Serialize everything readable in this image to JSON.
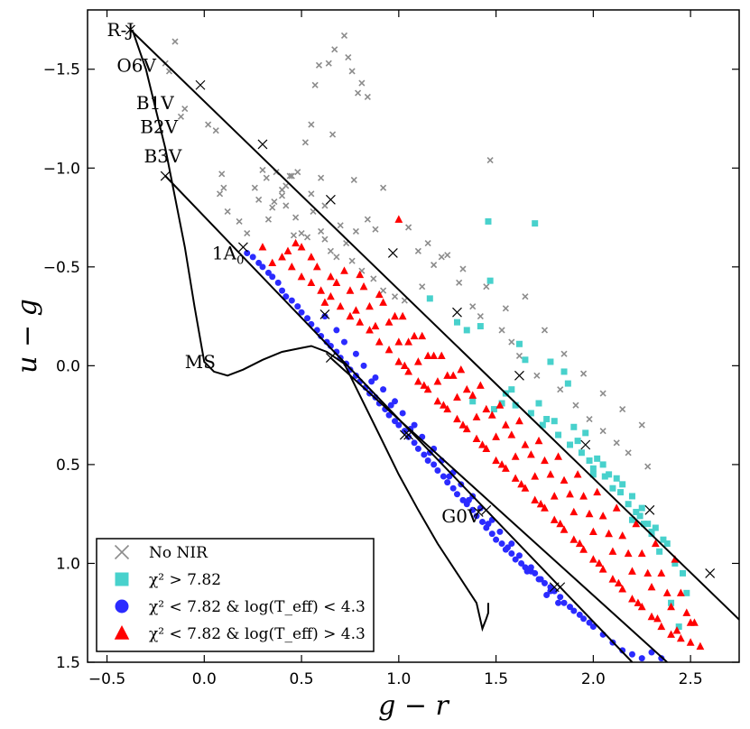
{
  "chart_data": {
    "type": "scatter",
    "xlabel": "g − r",
    "ylabel": "u − g",
    "xlim": [
      -0.6,
      2.75
    ],
    "ylim": [
      1.5,
      -1.8
    ],
    "x_ticks": [
      -0.5,
      0.0,
      0.5,
      1.0,
      1.5,
      2.0,
      2.5
    ],
    "x_tick_labels": [
      "−0.5",
      "0.0",
      "0.5",
      "1.0",
      "1.5",
      "2.0",
      "2.5"
    ],
    "y_ticks": [
      -1.5,
      -1.0,
      -0.5,
      0.0,
      0.5,
      1.0,
      1.5
    ],
    "y_tick_labels": [
      "−1.5",
      "−1.0",
      "−0.5",
      "0.0",
      "0.5",
      "1.0",
      "1.5"
    ],
    "colors": {
      "no_nir": "#8c8c8c",
      "chi_high": "#48d1cc",
      "low_teff": "#2b2bff",
      "high_teff": "#ff0000",
      "axes": "#000000"
    },
    "lines": [
      {
        "name": "MS",
        "x": [
          -0.37,
          -0.3,
          -0.25,
          -0.2,
          -0.15,
          -0.1,
          -0.05,
          0.0,
          0.05,
          0.12,
          0.2,
          0.3,
          0.4,
          0.5,
          0.55,
          0.63,
          0.72,
          0.8,
          0.9,
          1.0,
          1.1,
          1.2,
          1.3,
          1.4,
          1.43,
          1.45,
          1.46,
          1.46
        ],
        "y": [
          -1.7,
          -1.5,
          -1.3,
          -1.1,
          -0.85,
          -0.6,
          -0.3,
          -0.02,
          0.03,
          0.05,
          0.02,
          -0.03,
          -0.07,
          -0.09,
          -0.1,
          -0.07,
          -0.01,
          0.15,
          0.35,
          0.55,
          0.73,
          0.9,
          1.05,
          1.2,
          1.33,
          1.28,
          1.25,
          1.2
        ]
      },
      {
        "name": "Reddening line from R-J",
        "x": [
          -0.38,
          2.85
        ],
        "y": [
          -1.7,
          1.38
        ]
      },
      {
        "name": "Reddening line from B3V",
        "x": [
          -0.2,
          2.2
        ],
        "y": [
          -0.96,
          1.5
        ]
      },
      {
        "name": "Reddening line from G0V region",
        "x": [
          0.65,
          2.38
        ],
        "y": [
          -0.04,
          1.5
        ]
      }
    ],
    "tick_marks": {
      "line1": [
        [
          -0.38,
          -1.7
        ],
        [
          -0.02,
          -1.42
        ],
        [
          0.3,
          -1.12
        ],
        [
          0.65,
          -0.84
        ],
        [
          0.97,
          -0.57
        ],
        [
          1.3,
          -0.27
        ],
        [
          1.62,
          0.05
        ],
        [
          1.96,
          0.4
        ],
        [
          2.29,
          0.73
        ],
        [
          2.6,
          1.05
        ]
      ],
      "line2": [
        [
          -0.2,
          -0.96
        ],
        [
          0.2,
          -0.6
        ],
        [
          0.62,
          -0.26
        ],
        [
          1.05,
          0.35
        ],
        [
          1.45,
          0.73
        ],
        [
          1.83,
          1.12
        ]
      ],
      "line3": [
        [
          0.65,
          -0.04
        ],
        [
          1.03,
          0.35
        ],
        [
          1.41,
          0.74
        ],
        [
          1.8,
          1.12
        ]
      ]
    },
    "annotations": [
      {
        "text": "R-J",
        "x": -0.5,
        "y": -1.7
      },
      {
        "text": "O6V",
        "x": -0.45,
        "y": -1.52
      },
      {
        "text": "B1V",
        "x": -0.35,
        "y": -1.33
      },
      {
        "text": "B2V",
        "x": -0.33,
        "y": -1.21
      },
      {
        "text": "B3V",
        "x": -0.31,
        "y": -1.06
      },
      {
        "text": "1A",
        "sub": "0",
        "x": 0.04,
        "y": -0.57
      },
      {
        "text": "MS",
        "x": -0.1,
        "y": -0.02
      },
      {
        "text": "G0V",
        "x": 1.22,
        "y": 0.76
      }
    ],
    "legend": {
      "position": "bottom-left",
      "entries": [
        {
          "key": "no_nir",
          "label": "No NIR"
        },
        {
          "key": "chi_high",
          "label": "χ² > 7.82"
        },
        {
          "key": "low_teff",
          "label": "χ² < 7.82 & log(T_eff) < 4.3"
        },
        {
          "key": "high_teff",
          "label": "χ² < 7.82 & log(T_eff) > 4.3"
        }
      ]
    },
    "series": [
      {
        "name": "No NIR",
        "key": "no_nir",
        "marker": "x",
        "x": [
          -0.2,
          -0.15,
          -0.18,
          -0.12,
          -0.1,
          0.02,
          0.06,
          0.09,
          0.1,
          0.08,
          0.12,
          0.18,
          0.22,
          0.28,
          0.32,
          0.37,
          0.42,
          0.47,
          0.5,
          0.56,
          0.6,
          0.62,
          0.7,
          0.76,
          0.81,
          0.87,
          0.92,
          0.98,
          1.03,
          1.1,
          1.12,
          1.18,
          1.22,
          1.31,
          1.38,
          1.42,
          1.53,
          1.58,
          1.62,
          1.71,
          1.83,
          1.91,
          1.98,
          2.05,
          2.12,
          2.18,
          2.28,
          0.35,
          0.4,
          0.45,
          0.52,
          0.55,
          0.57,
          0.59,
          0.64,
          0.67,
          0.72,
          0.74,
          0.76,
          0.79,
          0.81,
          0.84,
          0.66,
          0.77,
          0.6,
          0.55,
          0.46,
          1.47,
          0.92,
          1.33,
          0.73,
          0.62,
          0.65,
          0.68,
          0.78,
          0.84,
          0.88,
          1.05,
          1.15,
          1.25,
          1.45,
          1.55,
          1.65,
          1.75,
          1.85,
          1.95,
          2.05,
          2.15,
          2.25,
          0.26,
          0.3,
          0.33,
          0.36,
          0.4,
          0.42,
          0.44,
          0.48,
          0.53
        ],
        "y": [
          -1.53,
          -1.64,
          -1.49,
          -1.26,
          -1.3,
          -1.22,
          -1.19,
          -0.97,
          -0.9,
          -0.87,
          -0.78,
          -0.73,
          -0.67,
          -0.84,
          -0.95,
          -0.98,
          -0.81,
          -0.75,
          -0.67,
          -0.78,
          -0.68,
          -0.81,
          -0.71,
          -0.53,
          -0.48,
          -0.44,
          -0.38,
          -0.35,
          -0.33,
          -0.58,
          -0.4,
          -0.51,
          -0.55,
          -0.42,
          -0.3,
          -0.25,
          -0.18,
          -0.12,
          -0.05,
          0.05,
          0.12,
          0.2,
          0.27,
          0.33,
          0.39,
          0.44,
          0.51,
          -0.8,
          -0.89,
          -0.96,
          -1.13,
          -1.22,
          -1.42,
          -1.52,
          -1.53,
          -1.6,
          -1.67,
          -1.56,
          -1.49,
          -1.38,
          -1.43,
          -1.36,
          -1.17,
          -0.94,
          -0.95,
          -0.87,
          -0.66,
          -1.04,
          -0.9,
          -0.49,
          -0.62,
          -0.64,
          -0.58,
          -0.55,
          -0.68,
          -0.74,
          -0.69,
          -0.7,
          -0.62,
          -0.56,
          -0.4,
          -0.29,
          -0.35,
          -0.18,
          -0.06,
          0.04,
          0.14,
          0.22,
          0.3,
          -0.9,
          -0.99,
          -0.74,
          -0.83,
          -0.86,
          -0.91,
          -0.96,
          -0.98,
          -0.65
        ]
      },
      {
        "name": "χ² > 7.82",
        "key": "chi_high",
        "marker": "s",
        "x": [
          1.46,
          1.7,
          1.47,
          1.62,
          1.78,
          1.85,
          1.87,
          1.65,
          1.58,
          1.49,
          1.53,
          1.38,
          1.42,
          1.72,
          1.76,
          1.8,
          1.9,
          1.92,
          1.96,
          2.02,
          2.05,
          2.08,
          2.12,
          2.15,
          2.2,
          2.25,
          2.28,
          2.32,
          2.36,
          2.42,
          2.46,
          1.82,
          1.94,
          2.0,
          2.1,
          2.18,
          2.24,
          2.3,
          2.38,
          2.48,
          1.68,
          1.74,
          1.88,
          1.98,
          2.06,
          2.14,
          2.22,
          2.34,
          1.55,
          1.6,
          2.0,
          2.2,
          2.4,
          2.44,
          1.16,
          1.3,
          1.35,
          2.26,
          2.3
        ],
        "y": [
          -0.73,
          -0.72,
          -0.43,
          -0.11,
          -0.02,
          0.03,
          0.09,
          -0.03,
          0.12,
          0.22,
          0.19,
          0.18,
          -0.2,
          0.19,
          0.27,
          0.28,
          0.31,
          0.38,
          0.34,
          0.47,
          0.5,
          0.55,
          0.57,
          0.6,
          0.66,
          0.72,
          0.8,
          0.82,
          0.88,
          1.0,
          1.05,
          0.35,
          0.44,
          0.52,
          0.62,
          0.7,
          0.76,
          0.84,
          0.9,
          1.15,
          0.24,
          0.3,
          0.4,
          0.48,
          0.56,
          0.64,
          0.74,
          0.94,
          0.14,
          0.2,
          0.55,
          0.78,
          1.2,
          1.32,
          -0.34,
          -0.22,
          -0.18,
          0.8,
          0.85
        ]
      },
      {
        "name": "χ² < 7.82 & log(T_eff) < 4.3",
        "key": "low_teff",
        "marker": "o",
        "x": [
          0.22,
          0.25,
          0.28,
          0.3,
          0.33,
          0.35,
          0.38,
          0.4,
          0.42,
          0.45,
          0.48,
          0.5,
          0.53,
          0.55,
          0.58,
          0.6,
          0.63,
          0.65,
          0.68,
          0.7,
          0.73,
          0.75,
          0.78,
          0.8,
          0.83,
          0.85,
          0.88,
          0.9,
          0.93,
          0.95,
          0.98,
          1.0,
          1.03,
          1.05,
          1.08,
          1.1,
          1.13,
          1.15,
          1.18,
          1.2,
          1.23,
          1.25,
          1.28,
          1.3,
          1.33,
          1.35,
          1.38,
          1.4,
          1.43,
          1.45,
          1.48,
          1.5,
          1.53,
          1.55,
          1.58,
          1.6,
          1.63,
          1.65,
          1.68,
          1.7,
          1.73,
          1.75,
          1.78,
          1.8,
          1.83,
          1.85,
          1.88,
          1.9,
          1.93,
          1.95,
          1.98,
          2.0,
          2.05,
          2.1,
          2.15,
          2.2,
          2.25,
          2.3,
          2.35,
          0.62,
          0.68,
          0.72,
          0.78,
          0.82,
          0.88,
          0.92,
          0.98,
          1.02,
          1.08,
          1.12,
          1.18,
          1.22,
          1.28,
          1.32,
          1.38,
          1.42,
          1.48,
          1.52,
          1.58,
          1.62,
          1.68,
          1.72,
          1.78,
          1.82,
          0.86,
          0.96,
          1.06,
          1.16,
          1.26,
          1.36,
          1.46,
          1.56,
          1.66,
          1.76
        ],
        "y": [
          -0.57,
          -0.55,
          -0.52,
          -0.5,
          -0.47,
          -0.45,
          -0.42,
          -0.38,
          -0.35,
          -0.33,
          -0.3,
          -0.27,
          -0.24,
          -0.21,
          -0.18,
          -0.15,
          -0.12,
          -0.1,
          -0.07,
          -0.04,
          -0.01,
          0.02,
          0.05,
          0.08,
          0.11,
          0.14,
          0.16,
          0.19,
          0.22,
          0.25,
          0.28,
          0.3,
          0.33,
          0.36,
          0.39,
          0.42,
          0.45,
          0.48,
          0.5,
          0.53,
          0.56,
          0.59,
          0.62,
          0.65,
          0.68,
          0.7,
          0.73,
          0.76,
          0.79,
          0.82,
          0.85,
          0.88,
          0.9,
          0.93,
          0.95,
          0.98,
          1.0,
          1.02,
          1.04,
          1.05,
          1.08,
          1.1,
          1.12,
          1.14,
          1.17,
          1.2,
          1.22,
          1.24,
          1.26,
          1.28,
          1.3,
          1.32,
          1.36,
          1.4,
          1.44,
          1.46,
          1.48,
          1.45,
          1.48,
          -0.25,
          -0.18,
          -0.12,
          -0.06,
          0.0,
          0.06,
          0.12,
          0.18,
          0.24,
          0.3,
          0.36,
          0.42,
          0.48,
          0.54,
          0.6,
          0.66,
          0.72,
          0.78,
          0.84,
          0.9,
          0.96,
          1.02,
          1.08,
          1.14,
          1.2,
          0.08,
          0.2,
          0.32,
          0.44,
          0.56,
          0.68,
          0.8,
          0.92,
          1.04,
          1.16
        ]
      },
      {
        "name": "χ² < 7.82 & log(T_eff) > 4.3",
        "key": "high_teff",
        "marker": "^",
        "x": [
          0.3,
          0.35,
          0.4,
          0.45,
          0.5,
          0.55,
          0.6,
          0.65,
          0.7,
          0.75,
          0.8,
          0.85,
          0.9,
          0.95,
          1.0,
          1.05,
          1.1,
          1.15,
          1.2,
          1.25,
          1.3,
          1.35,
          1.4,
          1.45,
          1.5,
          1.55,
          1.6,
          1.65,
          1.7,
          1.75,
          1.8,
          1.85,
          1.9,
          1.95,
          2.0,
          2.05,
          2.1,
          2.15,
          2.2,
          2.25,
          2.3,
          2.35,
          2.4,
          2.45,
          2.5,
          2.55,
          0.55,
          0.65,
          0.75,
          0.85,
          0.95,
          1.05,
          1.15,
          1.25,
          1.35,
          1.45,
          1.55,
          1.65,
          1.75,
          1.85,
          1.95,
          2.05,
          2.15,
          2.25,
          2.35,
          2.45,
          0.72,
          0.82,
          0.92,
          1.02,
          1.12,
          1.22,
          1.32,
          1.42,
          1.52,
          1.62,
          1.72,
          1.82,
          1.92,
          2.02,
          2.12,
          2.22,
          2.32,
          2.42,
          0.98,
          1.08,
          1.18,
          1.28,
          1.38,
          1.48,
          1.58,
          1.68,
          1.78,
          1.88,
          1.98,
          2.08,
          2.18,
          2.28,
          2.38,
          2.48,
          2.52,
          0.62,
          0.78,
          0.88,
          1.0,
          1.1,
          1.2,
          1.3,
          1.4,
          1.5,
          1.6,
          1.7,
          1.8,
          1.9,
          2.0,
          2.1,
          2.2,
          2.3,
          2.4,
          2.5,
          1.03,
          1.13,
          1.23,
          1.33,
          1.43,
          1.53,
          1.63,
          1.73,
          1.83,
          1.93,
          2.03,
          2.13,
          2.23,
          2.33,
          2.43,
          0.58,
          0.68,
          0.8,
          0.9,
          1.0,
          0.5,
          0.47,
          0.43
        ],
        "y": [
          -0.6,
          -0.52,
          -0.55,
          -0.5,
          -0.45,
          -0.42,
          -0.38,
          -0.35,
          -0.3,
          -0.25,
          -0.22,
          -0.18,
          -0.12,
          -0.08,
          -0.02,
          0.03,
          0.08,
          0.12,
          0.18,
          0.22,
          0.27,
          0.32,
          0.37,
          0.42,
          0.48,
          0.52,
          0.57,
          0.62,
          0.68,
          0.72,
          0.78,
          0.83,
          0.88,
          0.93,
          0.98,
          1.03,
          1.08,
          1.13,
          1.18,
          1.22,
          1.27,
          1.32,
          1.36,
          1.38,
          1.4,
          1.42,
          -0.55,
          -0.45,
          -0.38,
          -0.3,
          -0.22,
          -0.12,
          -0.05,
          0.05,
          0.12,
          0.22,
          0.3,
          0.4,
          0.48,
          0.58,
          0.66,
          0.76,
          0.86,
          0.95,
          1.05,
          1.15,
          -0.48,
          -0.4,
          -0.32,
          -0.25,
          -0.15,
          -0.05,
          0.02,
          0.1,
          0.2,
          0.28,
          0.38,
          0.46,
          0.55,
          0.64,
          0.72,
          0.8,
          0.9,
          0.98,
          -0.25,
          -0.15,
          -0.05,
          0.05,
          0.15,
          0.25,
          0.35,
          0.45,
          0.55,
          0.65,
          0.75,
          0.85,
          0.95,
          1.05,
          1.15,
          1.25,
          1.3,
          -0.32,
          -0.28,
          -0.2,
          -0.12,
          -0.02,
          0.08,
          0.16,
          0.26,
          0.36,
          0.46,
          0.56,
          0.66,
          0.74,
          0.84,
          0.94,
          1.04,
          1.12,
          1.22,
          1.3,
          0.0,
          0.1,
          0.2,
          0.3,
          0.4,
          0.5,
          0.6,
          0.7,
          0.8,
          0.9,
          1.0,
          1.1,
          1.2,
          1.28,
          1.34,
          -0.5,
          -0.42,
          -0.46,
          -0.36,
          -0.74,
          -0.6,
          -0.62,
          -0.58
        ]
      }
    ]
  }
}
